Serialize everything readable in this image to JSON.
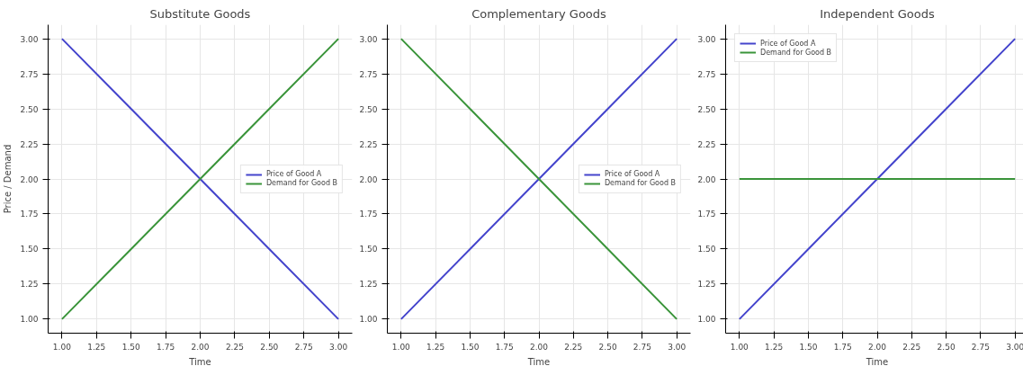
{
  "chart_data": [
    {
      "type": "line",
      "title": "Substitute Goods",
      "xlabel": "Time",
      "ylabel": "Price / Demand",
      "x": [
        1,
        1.5,
        2,
        2.5,
        3
      ],
      "series": [
        {
          "name": "Price of Good A",
          "color": "#4444cc",
          "values": [
            3,
            2.5,
            2,
            1.5,
            1
          ]
        },
        {
          "name": "Demand for Good B",
          "color": "#3a943a",
          "values": [
            1,
            1.5,
            2,
            2.5,
            3
          ]
        }
      ],
      "xlim": [
        0.9,
        3.1
      ],
      "ylim": [
        0.9,
        3.1
      ],
      "xticks": [
        {
          "value": 1,
          "label": "1.00"
        },
        {
          "value": 1.25,
          "label": "1.25"
        },
        {
          "value": 1.5,
          "label": "1.50"
        },
        {
          "value": 1.75,
          "label": "1.75"
        },
        {
          "value": 2,
          "label": "2.00"
        },
        {
          "value": 2.25,
          "label": "2.25"
        },
        {
          "value": 2.5,
          "label": "2.50"
        },
        {
          "value": 2.75,
          "label": "2.75"
        },
        {
          "value": 3,
          "label": "3.00"
        }
      ],
      "yticks": [
        {
          "value": 1,
          "label": "1.00"
        },
        {
          "value": 1.25,
          "label": "1.25"
        },
        {
          "value": 1.5,
          "label": "1.50"
        },
        {
          "value": 1.75,
          "label": "1.75"
        },
        {
          "value": 2,
          "label": "2.00"
        },
        {
          "value": 2.25,
          "label": "2.25"
        },
        {
          "value": 2.5,
          "label": "2.50"
        },
        {
          "value": 2.75,
          "label": "2.75"
        },
        {
          "value": 3,
          "label": "3.00"
        }
      ],
      "grid": true,
      "legend": "right"
    },
    {
      "type": "line",
      "title": "Complementary Goods",
      "xlabel": "Time",
      "x": [
        1,
        1.5,
        2,
        2.5,
        3
      ],
      "series": [
        {
          "name": "Price of Good A",
          "color": "#4444cc",
          "values": [
            1,
            1.5,
            2,
            2.5,
            3
          ]
        },
        {
          "name": "Demand for Good B",
          "color": "#3a943a",
          "values": [
            3,
            2.5,
            2,
            1.5,
            1
          ]
        }
      ],
      "xlim": [
        0.9,
        3.1
      ],
      "ylim": [
        0.9,
        3.1
      ],
      "xticks": [
        {
          "value": 1,
          "label": "1.00"
        },
        {
          "value": 1.25,
          "label": "1.25"
        },
        {
          "value": 1.5,
          "label": "1.50"
        },
        {
          "value": 1.75,
          "label": "1.75"
        },
        {
          "value": 2,
          "label": "2.00"
        },
        {
          "value": 2.25,
          "label": "2.25"
        },
        {
          "value": 2.5,
          "label": "2.50"
        },
        {
          "value": 2.75,
          "label": "2.75"
        },
        {
          "value": 3,
          "label": "3.00"
        }
      ],
      "yticks": [
        {
          "value": 1,
          "label": "1.00"
        },
        {
          "value": 1.25,
          "label": "1.25"
        },
        {
          "value": 1.5,
          "label": "1.50"
        },
        {
          "value": 1.75,
          "label": "1.75"
        },
        {
          "value": 2,
          "label": "2.00"
        },
        {
          "value": 2.25,
          "label": "2.25"
        },
        {
          "value": 2.5,
          "label": "2.50"
        },
        {
          "value": 2.75,
          "label": "2.75"
        },
        {
          "value": 3,
          "label": "3.00"
        }
      ],
      "grid": true,
      "legend": "right"
    },
    {
      "type": "line",
      "title": "Independent Goods",
      "xlabel": "Time",
      "x": [
        1,
        1.5,
        2,
        2.5,
        3
      ],
      "series": [
        {
          "name": "Price of Good A",
          "color": "#4444cc",
          "values": [
            1,
            1.5,
            2,
            2.5,
            3
          ]
        },
        {
          "name": "Demand for Good B",
          "color": "#3a943a",
          "values": [
            2,
            2,
            2,
            2,
            2
          ]
        }
      ],
      "xlim": [
        0.9,
        3.1
      ],
      "ylim": [
        0.9,
        3.1
      ],
      "xticks": [
        {
          "value": 1,
          "label": "1.00"
        },
        {
          "value": 1.25,
          "label": "1.25"
        },
        {
          "value": 1.5,
          "label": "1.50"
        },
        {
          "value": 1.75,
          "label": "1.75"
        },
        {
          "value": 2,
          "label": "2.00"
        },
        {
          "value": 2.25,
          "label": "2.25"
        },
        {
          "value": 2.5,
          "label": "2.50"
        },
        {
          "value": 2.75,
          "label": "2.75"
        },
        {
          "value": 3,
          "label": "3.00"
        }
      ],
      "yticks": [
        {
          "value": 1,
          "label": "1.00"
        },
        {
          "value": 1.25,
          "label": "1.25"
        },
        {
          "value": 1.5,
          "label": "1.50"
        },
        {
          "value": 1.75,
          "label": "1.75"
        },
        {
          "value": 2,
          "label": "2.00"
        },
        {
          "value": 2.25,
          "label": "2.25"
        },
        {
          "value": 2.5,
          "label": "2.50"
        },
        {
          "value": 2.75,
          "label": "2.75"
        },
        {
          "value": 3,
          "label": "3.00"
        }
      ],
      "grid": true,
      "legend": "top left"
    }
  ]
}
